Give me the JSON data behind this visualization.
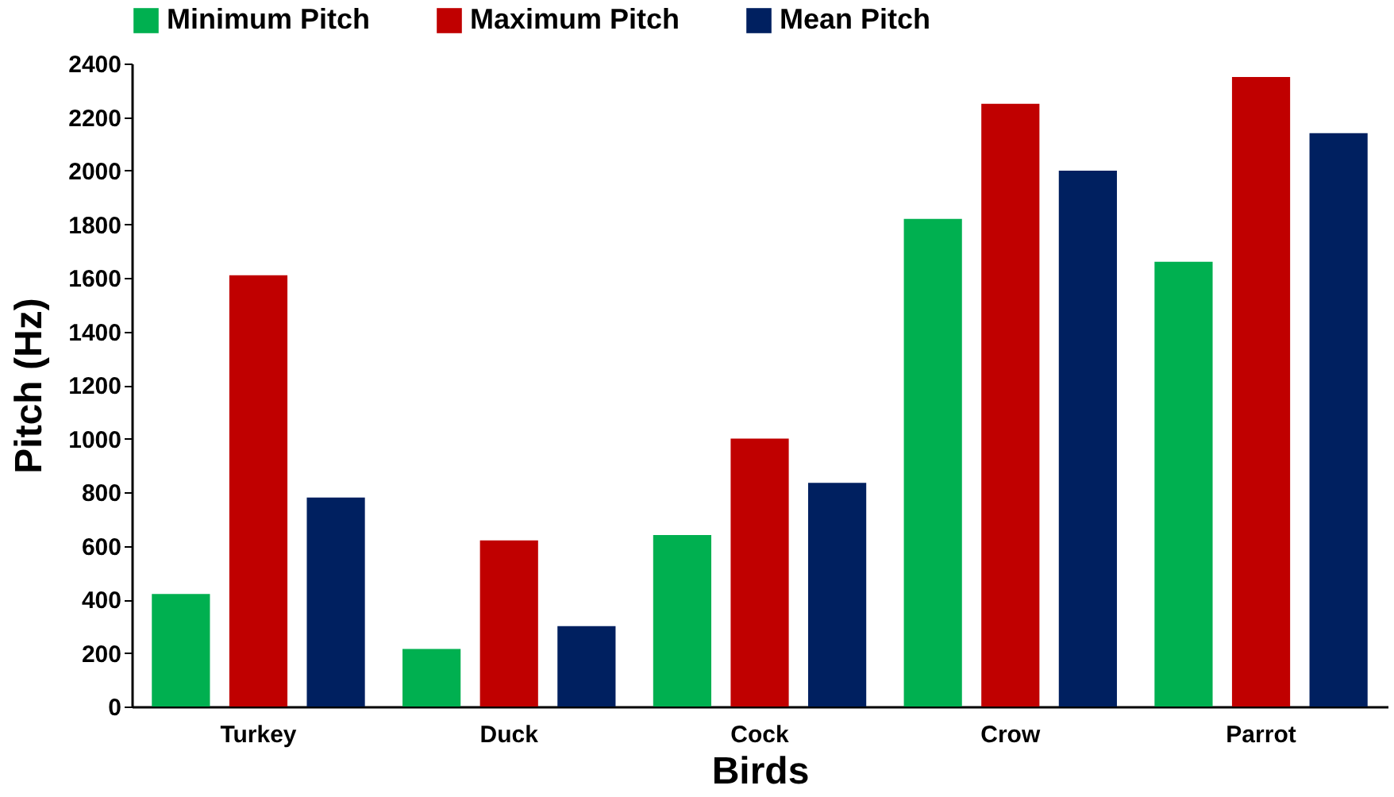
{
  "chart_data": {
    "type": "bar",
    "xlabel": "Birds",
    "ylabel": "Pitch (Hz)",
    "categories": [
      "Turkey",
      "Duck",
      "Cock",
      "Crow",
      "Parrot"
    ],
    "series": [
      {
        "name": "Minimum Pitch",
        "color": "#00b050",
        "values": [
          420,
          215,
          640,
          1820,
          1660
        ]
      },
      {
        "name": "Maximum Pitch",
        "color": "#c00000",
        "values": [
          1610,
          620,
          1000,
          2250,
          2350
        ]
      },
      {
        "name": "Mean Pitch",
        "color": "#002060",
        "values": [
          780,
          300,
          835,
          2000,
          2140
        ]
      }
    ],
    "ylim": [
      0,
      2400
    ],
    "yticks": [
      0,
      200,
      400,
      600,
      800,
      1000,
      1200,
      1400,
      1600,
      1800,
      2000,
      2200,
      2400
    ],
    "legend": "top",
    "grid": false
  }
}
